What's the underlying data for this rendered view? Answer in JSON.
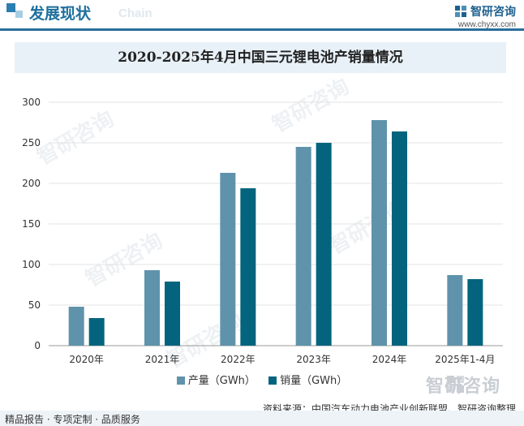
{
  "header": {
    "title": "发展现状",
    "title_en": "Chain",
    "brand_name": "智研咨询",
    "brand_url": "www.chyxx.com"
  },
  "watermark": {
    "text": "智研咨询"
  },
  "legend": {
    "items": [
      "产量（GWh）",
      "销量（GWh）"
    ]
  },
  "source": "资料来源：中国汽车动力电池产业创新联盟、智研咨询整理",
  "footer": "精品报告 · 专项定制 · 品质服务",
  "colors": {
    "production": "#5f93ab",
    "sales": "#04647e",
    "accent": "#1d6f9e"
  },
  "chart_data": {
    "type": "bar",
    "title": "2020-2025年4月中国三元锂电池产销量情况",
    "categories": [
      "2020年",
      "2021年",
      "2022年",
      "2023年",
      "2024年",
      "2025年1-4月"
    ],
    "series": [
      {
        "name": "产量（GWh）",
        "values": [
          48,
          93,
          213,
          245,
          278,
          87
        ]
      },
      {
        "name": "销量（GWh）",
        "values": [
          34,
          79,
          194,
          250,
          264,
          82
        ]
      }
    ],
    "ylim": [
      0,
      300
    ],
    "yticks": [
      0,
      50,
      100,
      150,
      200,
      250,
      300
    ],
    "grid": true,
    "legend_position": "bottom"
  }
}
